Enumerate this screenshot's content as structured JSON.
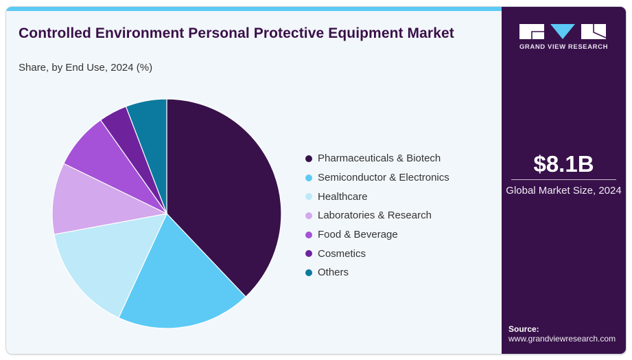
{
  "header": {
    "title": "Controlled Environment Personal Protective Equipment Market",
    "subtitle": "Share, by End Use, 2024 (%)"
  },
  "brand": {
    "name": "GRAND VIEW RESEARCH",
    "accent": "#5ccaf5",
    "panel_color": "#38114a"
  },
  "highlight": {
    "value": "$8.1B",
    "label": "Global Market Size, 2024"
  },
  "source": {
    "label": "Source:",
    "url": "www.grandviewresearch.com"
  },
  "chart_data": {
    "type": "pie",
    "title": "Controlled Environment Personal Protective Equipment Market",
    "subtitle": "Share, by End Use, 2024 (%)",
    "start_angle": "12 o'clock",
    "direction": "clockwise",
    "legend_position": "right",
    "categories": [
      "Pharmaceuticals & Biotech",
      "Semiconductor & Electronics",
      "Healthcare",
      "Laboratories & Research",
      "Food & Beverage",
      "Cosmetics",
      "Others"
    ],
    "values": [
      37.9,
      19.0,
      15.2,
      10.1,
      8.0,
      4.0,
      5.8
    ],
    "colors": [
      "#38114a",
      "#5ccaf5",
      "#bde9f9",
      "#d4a8ec",
      "#a552d8",
      "#6e239d",
      "#0c7a9e"
    ]
  }
}
